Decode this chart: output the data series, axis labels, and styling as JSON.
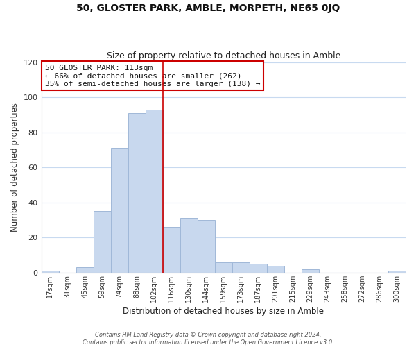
{
  "title": "50, GLOSTER PARK, AMBLE, MORPETH, NE65 0JQ",
  "subtitle": "Size of property relative to detached houses in Amble",
  "xlabel": "Distribution of detached houses by size in Amble",
  "ylabel": "Number of detached properties",
  "bar_labels": [
    "17sqm",
    "31sqm",
    "45sqm",
    "59sqm",
    "74sqm",
    "88sqm",
    "102sqm",
    "116sqm",
    "130sqm",
    "144sqm",
    "159sqm",
    "173sqm",
    "187sqm",
    "201sqm",
    "215sqm",
    "229sqm",
    "243sqm",
    "258sqm",
    "272sqm",
    "286sqm",
    "300sqm"
  ],
  "bar_values": [
    1,
    0,
    3,
    35,
    71,
    91,
    93,
    26,
    31,
    30,
    6,
    6,
    5,
    4,
    0,
    2,
    0,
    0,
    0,
    0,
    1
  ],
  "bar_color": "#c8d8ee",
  "bar_edge_color": "#a0b8d8",
  "vline_color": "#cc0000",
  "annotation_text": "50 GLOSTER PARK: 113sqm\n← 66% of detached houses are smaller (262)\n35% of semi-detached houses are larger (138) →",
  "annotation_box_color": "#ffffff",
  "annotation_box_edge": "#cc0000",
  "grid_color": "#c8daf0",
  "background_color": "#ffffff",
  "footer_line1": "Contains HM Land Registry data © Crown copyright and database right 2024.",
  "footer_line2": "Contains public sector information licensed under the Open Government Licence v3.0.",
  "ylim": [
    0,
    120
  ],
  "figsize": [
    6.0,
    5.0
  ],
  "dpi": 100
}
